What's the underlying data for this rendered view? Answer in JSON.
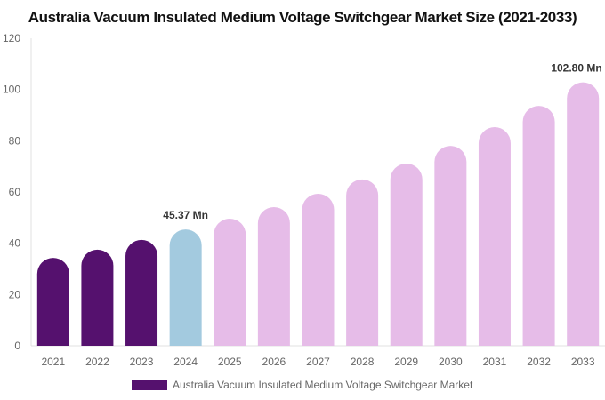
{
  "chart_data": {
    "type": "bar",
    "title": "Australia Vacuum Insulated Medium Voltage Switchgear Market Size (2021-2033)",
    "categories": [
      "2021",
      "2022",
      "2023",
      "2024",
      "2025",
      "2026",
      "2027",
      "2028",
      "2029",
      "2030",
      "2031",
      "2032",
      "2033"
    ],
    "series": [
      {
        "name": "Australia Vacuum Insulated Medium Voltage Switchgear Market",
        "values": [
          34.3,
          37.5,
          41.3,
          45.37,
          49.6,
          54.1,
          59.3,
          64.9,
          71.1,
          78.0,
          85.3,
          93.6,
          102.8
        ]
      }
    ],
    "bar_colors": {
      "historical": "#55116e",
      "base": "#a3cadf",
      "forecast": "#e6bce8"
    },
    "color_by_category": [
      "historical",
      "historical",
      "historical",
      "base",
      "forecast",
      "forecast",
      "forecast",
      "forecast",
      "forecast",
      "forecast",
      "forecast",
      "forecast",
      "forecast"
    ],
    "data_labels": {
      "3": "45.37 Mn",
      "12": "102.80 Mn"
    },
    "ylim": [
      0,
      120
    ],
    "yticks": [
      0,
      20,
      40,
      60,
      80,
      100,
      120
    ],
    "xlabel": "",
    "ylabel": "",
    "grid": false,
    "legend_position": "bottom"
  }
}
